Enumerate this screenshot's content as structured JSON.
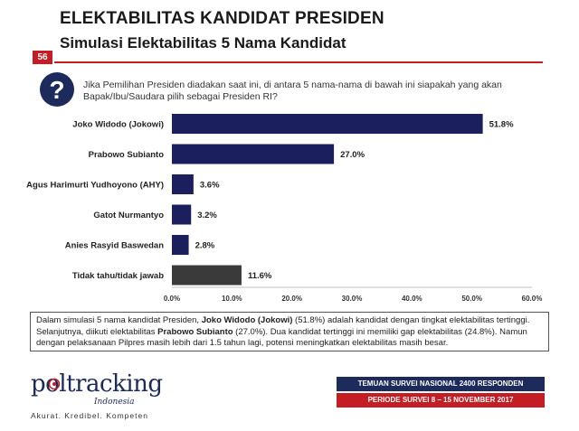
{
  "header": {
    "title": "ELEKTABILITAS KANDIDAT PRESIDEN",
    "subtitle": "Simulasi Elektabilitas 5 Nama Kandidat",
    "page_number": "56"
  },
  "question": {
    "icon": "question-mark-icon",
    "text": "Jika Pemilihan Presiden diadakan saat ini, di antara 5 nama-nama di bawah ini siapakah yang akan Bapak/Ibu/Saudara pilih sebagai Presiden RI?"
  },
  "chart_data": {
    "type": "bar",
    "orientation": "horizontal",
    "categories": [
      "Joko Widodo (Jokowi)",
      "Prabowo Subianto",
      "Agus Harimurti Yudhoyono (AHY)",
      "Gatot Nurmantyo",
      "Anies Rasyid Baswedan",
      "Tidak tahu/tidak jawab"
    ],
    "values": [
      51.8,
      27.0,
      3.6,
      3.2,
      2.8,
      11.6
    ],
    "value_labels": [
      "51.8%",
      "27.0%",
      "3.6%",
      "3.2%",
      "2.8%",
      "11.6%"
    ],
    "bar_colors": [
      "#1c1f5e",
      "#1c1f5e",
      "#1c1f5e",
      "#1c1f5e",
      "#1c1f5e",
      "#3a3a3a"
    ],
    "xlim": [
      0,
      60
    ],
    "xticks": [
      0,
      10,
      20,
      30,
      40,
      50,
      60
    ],
    "xtick_labels": [
      "0.0%",
      "10.0%",
      "20.0%",
      "30.0%",
      "40.0%",
      "50.0%",
      "60.0%"
    ],
    "grid": false,
    "legend": "none"
  },
  "summary": {
    "p1": "Dalam simulasi 5 nama kandidat Presiden, ",
    "b1": "Joko Widodo (Jokowi)",
    "p2": " (51.8%) adalah kandidat dengan tingkat elektabilitas tertinggi. Selanjutnya, diikuti elektabilitas ",
    "b2": "Prabowo Subianto",
    "p3": " (27.0%). Dua kandidat tertinggi ini memiliki gap elektabilitas (24.8%). Namun dengan pelaksanaan Pilpres masih lebih dari 1.5 tahun lagi, potensi meningkatkan elektabilitas masih besar."
  },
  "footer": {
    "logo_text": "poltracking",
    "logo_sub": "Indonesia",
    "tagline": "Akurat. Kredibel. Kompeten",
    "banner_top": "TEMUAN SURVEI NASIONAL 2400 RESPONDEN",
    "banner_bottom": "PERIODE SURVEI 8 – 15 NOVEMBER 2017"
  },
  "colors": {
    "navy": "#1c2a5c",
    "red": "#c41e24",
    "bar": "#1c1f5e",
    "bar_other": "#3a3a3a"
  }
}
